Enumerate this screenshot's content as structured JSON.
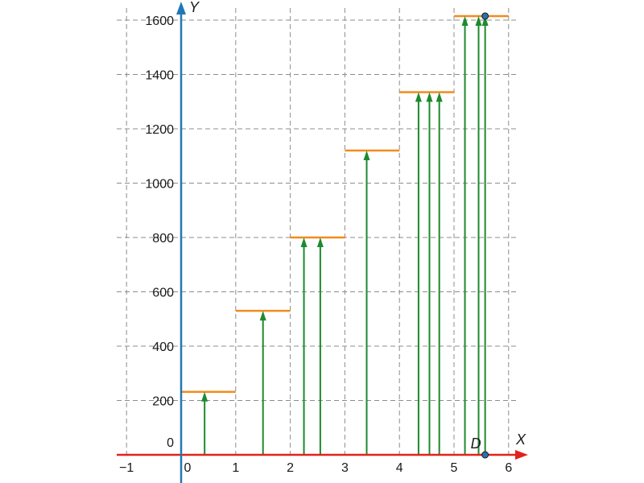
{
  "chart_data": {
    "type": "step",
    "x_label": "X",
    "y_label": "Y",
    "xlim": [
      -1,
      6
    ],
    "ylim": [
      0,
      1600
    ],
    "x_ticks": [
      {
        "value": -1,
        "label": "−1"
      },
      {
        "value": 0,
        "label": "0"
      },
      {
        "value": 1,
        "label": "1"
      },
      {
        "value": 2,
        "label": "2"
      },
      {
        "value": 3,
        "label": "3"
      },
      {
        "value": 4,
        "label": "4"
      },
      {
        "value": 5,
        "label": "5"
      },
      {
        "value": 6,
        "label": "6"
      }
    ],
    "y_ticks": [
      {
        "value": 0,
        "label": "0"
      },
      {
        "value": 200,
        "label": "200"
      },
      {
        "value": 400,
        "label": "400"
      },
      {
        "value": 600,
        "label": "600"
      },
      {
        "value": 800,
        "label": "800"
      },
      {
        "value": 1000,
        "label": "1000"
      },
      {
        "value": 1200,
        "label": "1200"
      },
      {
        "value": 1400,
        "label": "1400"
      },
      {
        "value": 1600,
        "label": "1600"
      }
    ],
    "grid": true,
    "steps": [
      {
        "x_start": 0,
        "x_end": 1,
        "y": 232
      },
      {
        "x_start": 1,
        "x_end": 2,
        "y": 530
      },
      {
        "x_start": 2,
        "x_end": 3,
        "y": 800
      },
      {
        "x_start": 3,
        "x_end": 4,
        "y": 1120
      },
      {
        "x_start": 4,
        "x_end": 5,
        "y": 1335
      },
      {
        "x_start": 5,
        "x_end": 6,
        "y": 1615
      }
    ],
    "arrows": [
      {
        "x": 0.43,
        "y": 232
      },
      {
        "x": 1.5,
        "y": 530
      },
      {
        "x": 2.25,
        "y": 800
      },
      {
        "x": 2.55,
        "y": 800
      },
      {
        "x": 3.4,
        "y": 1120
      },
      {
        "x": 4.35,
        "y": 1335
      },
      {
        "x": 4.55,
        "y": 1335
      },
      {
        "x": 4.73,
        "y": 1335
      },
      {
        "x": 5.2,
        "y": 1615
      },
      {
        "x": 5.45,
        "y": 1615
      },
      {
        "x": 5.57,
        "y": 1615
      }
    ],
    "points": [
      {
        "label": "D",
        "x": 5.57,
        "y": 0
      },
      {
        "label": "",
        "x": 5.57,
        "y": 1615
      }
    ],
    "colors": {
      "x_axis": "#e2231a",
      "y_axis": "#1f78b4",
      "step": "#f28c1c",
      "arrow": "#1d8a2e",
      "point_fill": "#2a6fb0",
      "point_stroke": "#1a1a1a"
    }
  }
}
